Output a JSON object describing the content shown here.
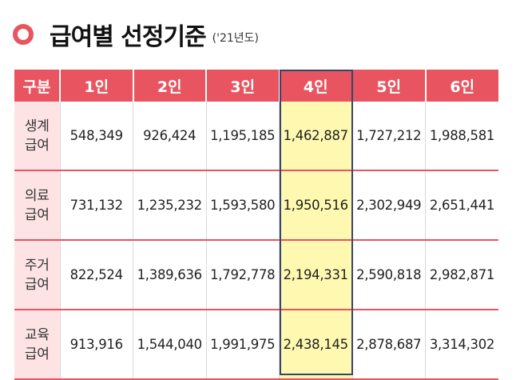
{
  "header": {
    "title": "급여별 선정기준",
    "subtitle": "('21년도)",
    "accent_color": "#e8545f",
    "bullet_icon": "ring-bullet-icon"
  },
  "table": {
    "columns": [
      "구분",
      "1인",
      "2인",
      "3인",
      "4인",
      "5인",
      "6인"
    ],
    "highlighted_column": "4인",
    "rows": [
      {
        "category_line1": "생계",
        "category_line2": "급여",
        "values": [
          "548,349",
          "926,424",
          "1,195,185",
          "1,462,887",
          "1,727,212",
          "1,988,581"
        ]
      },
      {
        "category_line1": "의료",
        "category_line2": "급여",
        "values": [
          "731,132",
          "1,235,232",
          "1,593,580",
          "1,950,516",
          "2,302,949",
          "2,651,441"
        ]
      },
      {
        "category_line1": "주거",
        "category_line2": "급여",
        "values": [
          "822,524",
          "1,389,636",
          "1,792,778",
          "2,194,331",
          "2,590,818",
          "2,982,871"
        ]
      },
      {
        "category_line1": "교육",
        "category_line2": "급여",
        "values": [
          "913,916",
          "1,544,040",
          "1,991,975",
          "2,438,145",
          "2,878,687",
          "3,314,302"
        ]
      }
    ],
    "header_color": "#e8545f",
    "category_bg": "#fde3e3",
    "highlight_bg": "#fff8b0",
    "highlight_border": "#34466b"
  }
}
